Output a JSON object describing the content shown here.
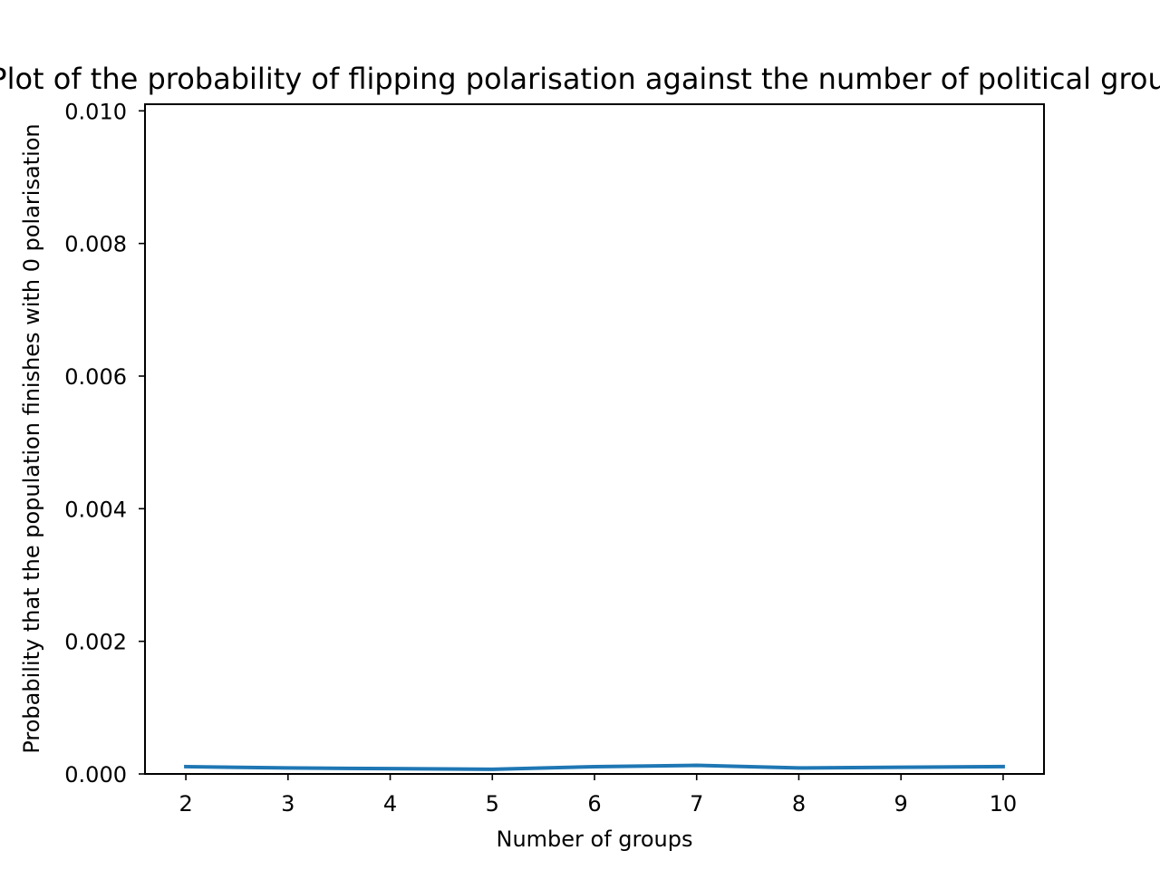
{
  "chart_data": {
    "type": "line",
    "title": "Plot of the probability of flipping polarisation against the number of political groups",
    "xlabel": "Number of groups",
    "ylabel": "Probability that the population finishes with 0 polarisation",
    "x": [
      2,
      3,
      4,
      5,
      6,
      7,
      8,
      9,
      10
    ],
    "series": [
      {
        "values": [
          0.00011,
          9e-05,
          8e-05,
          7e-05,
          0.00011,
          0.00013,
          9e-05,
          0.0001,
          0.00011
        ],
        "color": "#1f77b4"
      }
    ],
    "xticks": [
      "2",
      "3",
      "4",
      "5",
      "6",
      "7",
      "8",
      "9",
      "10"
    ],
    "yticks": [
      "0.000",
      "0.002",
      "0.004",
      "0.006",
      "0.008",
      "0.010"
    ],
    "xlim": [
      1.6,
      10.4
    ],
    "ylim": [
      0,
      0.0101
    ],
    "grid": false,
    "legend": false
  }
}
